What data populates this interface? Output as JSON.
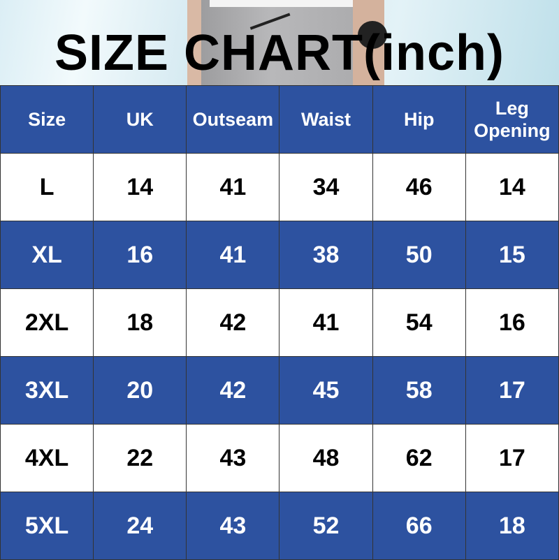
{
  "chart_data": {
    "type": "table",
    "title": "SIZE CHART(inch)",
    "columns": [
      "Size",
      "UK",
      "Outseam",
      "Waist",
      "Hip",
      "Leg Opening"
    ],
    "rows": [
      [
        "L",
        "14",
        "41",
        "34",
        "46",
        "14"
      ],
      [
        "XL",
        "16",
        "41",
        "38",
        "50",
        "15"
      ],
      [
        "2XL",
        "18",
        "42",
        "41",
        "54",
        "16"
      ],
      [
        "3XL",
        "20",
        "42",
        "45",
        "58",
        "17"
      ],
      [
        "4XL",
        "22",
        "43",
        "48",
        "62",
        "17"
      ],
      [
        "5XL",
        "24",
        "43",
        "52",
        "66",
        "18"
      ]
    ],
    "colors": {
      "header": "#2d52a0",
      "alt_row": "#2d52a0",
      "row": "#ffffff"
    }
  }
}
